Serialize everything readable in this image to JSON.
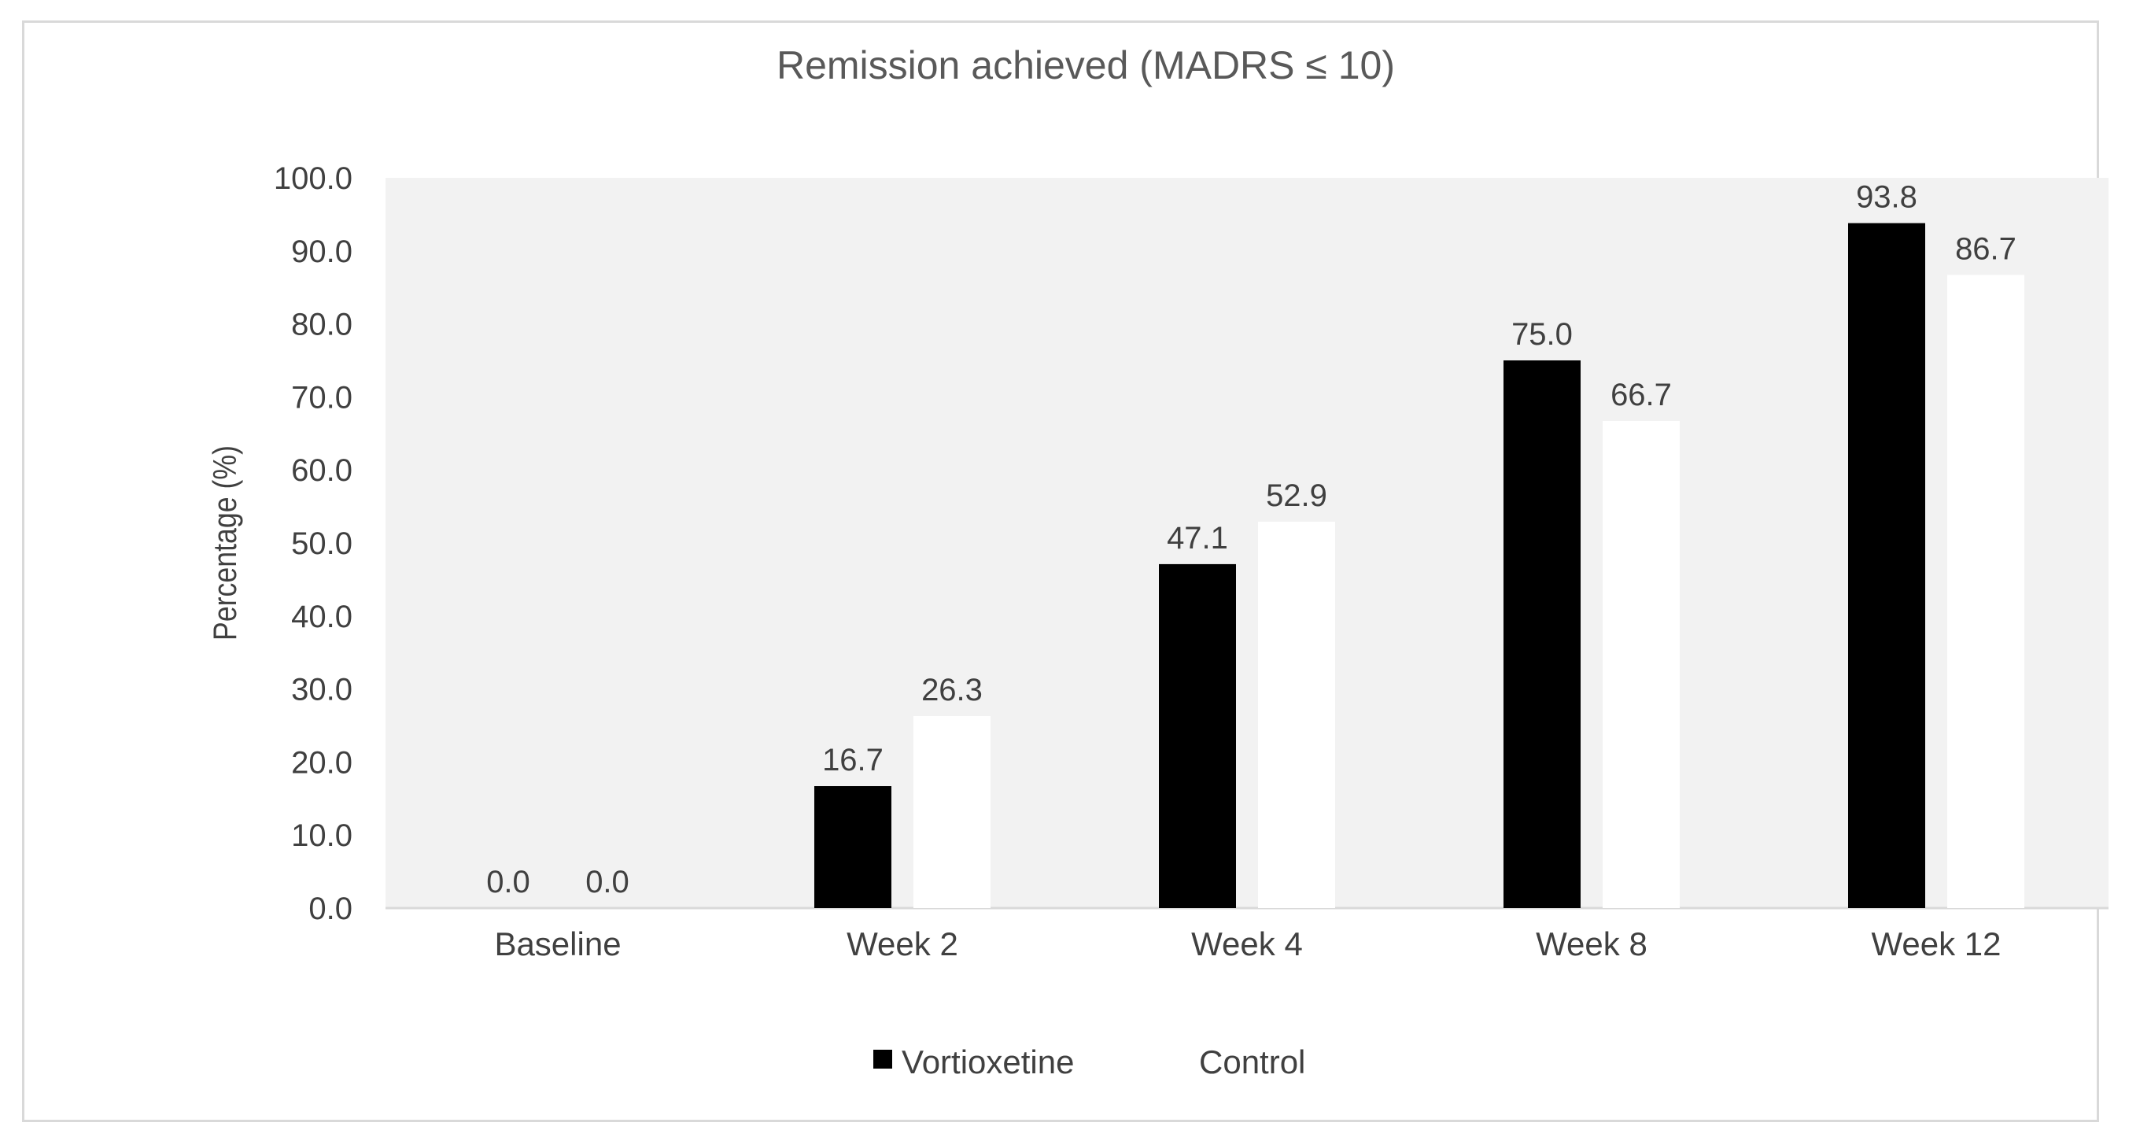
{
  "chart_data": {
    "type": "bar",
    "title": "Remission achieved (MADRS ≤ 10)",
    "xlabel": "",
    "ylabel": "Percentage (%)",
    "ylim": [
      0,
      100
    ],
    "yticks": [
      "0.0",
      "10.0",
      "20.0",
      "30.0",
      "40.0",
      "50.0",
      "60.0",
      "70.0",
      "80.0",
      "90.0",
      "100.0"
    ],
    "categories": [
      "Baseline",
      "Week 2",
      "Week 4",
      "Week 8",
      "Week 12"
    ],
    "series": [
      {
        "name": "Vortioxetine",
        "color": "#000000",
        "values": [
          0.0,
          16.7,
          47.1,
          75.0,
          93.8
        ],
        "labels": [
          "0.0",
          "16.7",
          "47.1",
          "75.0",
          "93.8"
        ]
      },
      {
        "name": "Control",
        "color": "#ffffff",
        "values": [
          0.0,
          26.3,
          52.9,
          66.7,
          86.7
        ],
        "labels": [
          "0.0",
          "26.3",
          "52.9",
          "66.7",
          "86.7"
        ]
      }
    ],
    "plot_background": "#f2f2f2",
    "grid": false,
    "legend": "bottom"
  }
}
